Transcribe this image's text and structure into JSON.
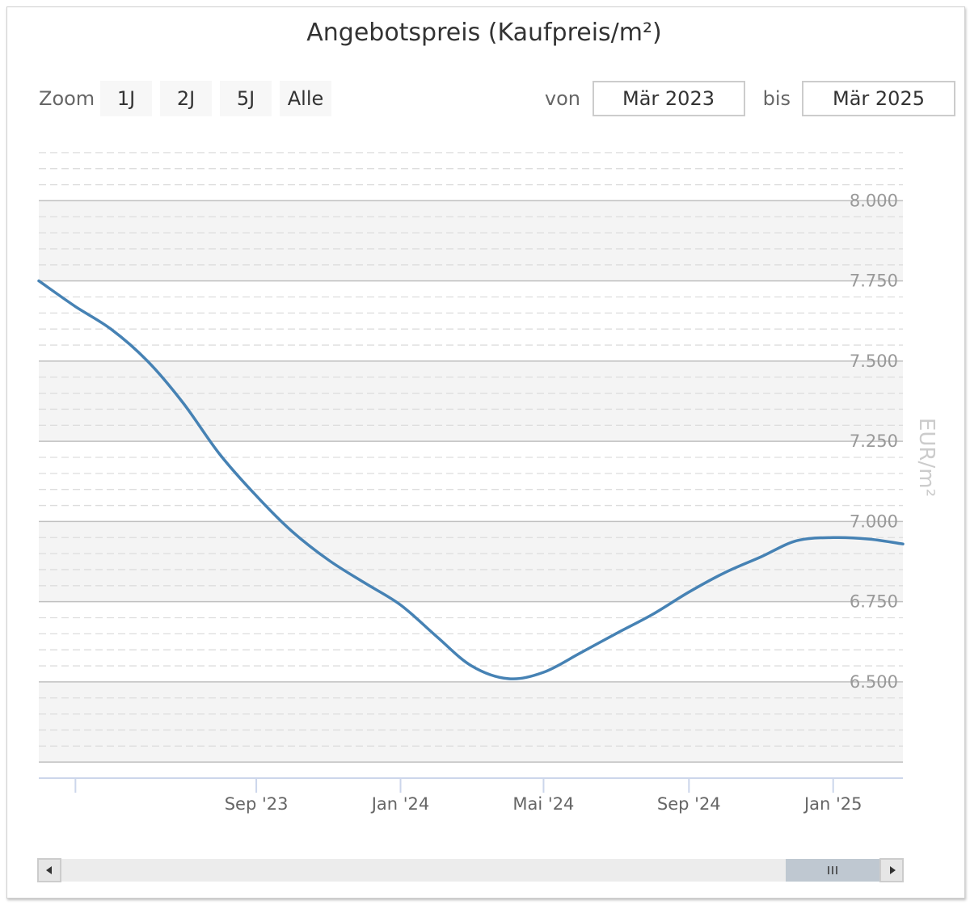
{
  "chart_data": {
    "type": "line",
    "title": "Angebotspreis (Kaufpreis/m²)",
    "ylabel": "EUR/m²",
    "xlabel": "",
    "ylim": [
      6200,
      8200
    ],
    "xlim": [
      "2023-03-01",
      "2025-03-01"
    ],
    "yticks": [
      6500,
      6750,
      7000,
      7250,
      7500,
      7750,
      8000
    ],
    "ytick_labels": [
      "6.500",
      "6.750",
      "7.000",
      "7.250",
      "7.500",
      "7.750",
      "8.000"
    ],
    "xticks": [
      "2023-09-01",
      "2024-01-01",
      "2024-05-01",
      "2024-09-01",
      "2025-01-01"
    ],
    "xtick_labels": [
      "Sep '23",
      "Jan '24",
      "Mai '24",
      "Sep '24",
      "Jan '25"
    ],
    "grid": true,
    "legend": "none",
    "color": "#4682b4",
    "series": [
      {
        "x": [
          "2023-03-01",
          "2023-04-01",
          "2023-05-01",
          "2023-06-01",
          "2023-07-01",
          "2023-08-01",
          "2023-09-01",
          "2023-10-01",
          "2023-11-01",
          "2023-12-01",
          "2024-01-01",
          "2024-02-01",
          "2024-03-01",
          "2024-04-01",
          "2024-05-01",
          "2024-06-01",
          "2024-07-01",
          "2024-08-01",
          "2024-09-01",
          "2024-10-01",
          "2024-11-01",
          "2024-12-01",
          "2025-01-01",
          "2025-02-01",
          "2025-03-01"
        ],
        "y": [
          7750,
          7670,
          7600,
          7500,
          7370,
          7210,
          7080,
          6970,
          6880,
          6810,
          6740,
          6640,
          6550,
          6510,
          6530,
          6590,
          6650,
          6710,
          6780,
          6840,
          6890,
          6940,
          6950,
          6945,
          6930
        ]
      }
    ]
  },
  "zoom": {
    "label": "Zoom",
    "buttons": [
      "1J",
      "2J",
      "5J",
      "Alle"
    ]
  },
  "range": {
    "from_label": "von",
    "from_value": "Mär 2023",
    "to_label": "bis",
    "to_value": "Mär 2025"
  },
  "colors": {
    "line": "#4682b4",
    "band": "#f4f4f4",
    "scrollbar_thumb": "#bfc8d1"
  },
  "scrollbar": {
    "left_arrow": "left-arrow-icon",
    "right_arrow": "right-arrow-icon"
  }
}
